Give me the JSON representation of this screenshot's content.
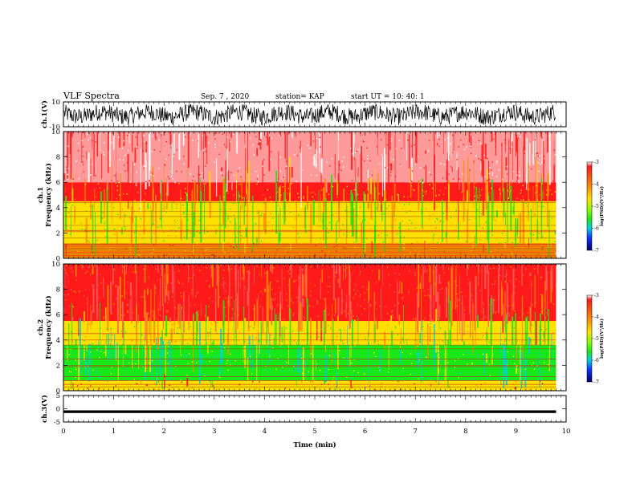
{
  "header": {
    "title": "VLF Spectra",
    "date": "Sep. 7 , 2020",
    "station": "station= KAP",
    "start": "start UT =   10: 40: 1"
  },
  "chart_data": [
    {
      "type": "line",
      "name": "ch1-waveform",
      "ylabel": "ch.1(V)",
      "ylim": [
        -10,
        10
      ],
      "yticks": [
        "10",
        "-10"
      ],
      "xlim": [
        0,
        10
      ],
      "description_of_signal": "noisy waveform spanning roughly -8 to +7 V over 0 to ~9.8 min"
    },
    {
      "type": "heatmap",
      "name": "ch1-spectrogram",
      "ylabel": "ch.1\nFrequency (kHz)",
      "ylim": [
        0,
        10
      ],
      "yticks": [
        "0",
        "2",
        "4",
        "6",
        "8",
        "10"
      ],
      "xlim": [
        0,
        10
      ],
      "colorbar": {
        "label": "log(PSD)(V²/Hz)",
        "range": [
          -7,
          -3
        ],
        "ticks": [
          "-3",
          "-4",
          "-5",
          "-6",
          "-7"
        ]
      },
      "bands": [
        {
          "from": 0,
          "to": 1.2,
          "dominant": "red/orange with horizontal lines"
        },
        {
          "from": 1.2,
          "to": 4.5,
          "dominant": "yellow/green mix"
        },
        {
          "from": 4.5,
          "to": 6,
          "dominant": "red/orange"
        },
        {
          "from": 6,
          "to": 10,
          "dominant": "red speckle on white"
        }
      ]
    },
    {
      "type": "heatmap",
      "name": "ch2-spectrogram",
      "ylabel": "ch.2\nFrequency (kHz)",
      "ylim": [
        0,
        10
      ],
      "yticks": [
        "0",
        "2",
        "4",
        "6",
        "8",
        "10"
      ],
      "xlim": [
        0,
        10
      ],
      "colorbar": {
        "label": "log(PSD)(V²/Hz)",
        "range": [
          -7,
          -3
        ],
        "ticks": [
          "-3",
          "-4",
          "-5",
          "-6",
          "-7"
        ]
      },
      "bands": [
        {
          "from": 0,
          "to": 0.8,
          "dominant": "yellow/orange"
        },
        {
          "from": 0.8,
          "to": 3.6,
          "dominant": "green/cyan"
        },
        {
          "from": 3.6,
          "to": 5.5,
          "dominant": "yellow/green"
        },
        {
          "from": 5.5,
          "to": 10,
          "dominant": "red with some white"
        }
      ]
    },
    {
      "type": "line",
      "name": "ch3-waveform",
      "ylabel": "ch.3(V)",
      "ylim": [
        -5,
        5
      ],
      "yticks": [
        "5",
        "0",
        "-5"
      ],
      "xlim": [
        0,
        10
      ],
      "xlabel": "Time (min)",
      "xticks": [
        "0",
        "1",
        "2",
        "3",
        "4",
        "5",
        "6",
        "7",
        "8",
        "9",
        "10"
      ],
      "band": {
        "from": -1.6,
        "to": -0.6,
        "x_end": 9.8
      }
    }
  ],
  "colors": {
    "red": "#ff1a1a",
    "orange": "#ff8c00",
    "yellow": "#ffe000",
    "green": "#18e818",
    "cyan": "#00d0e0",
    "blue": "#1030ff",
    "navy": "#000070",
    "white": "#ffffff"
  }
}
